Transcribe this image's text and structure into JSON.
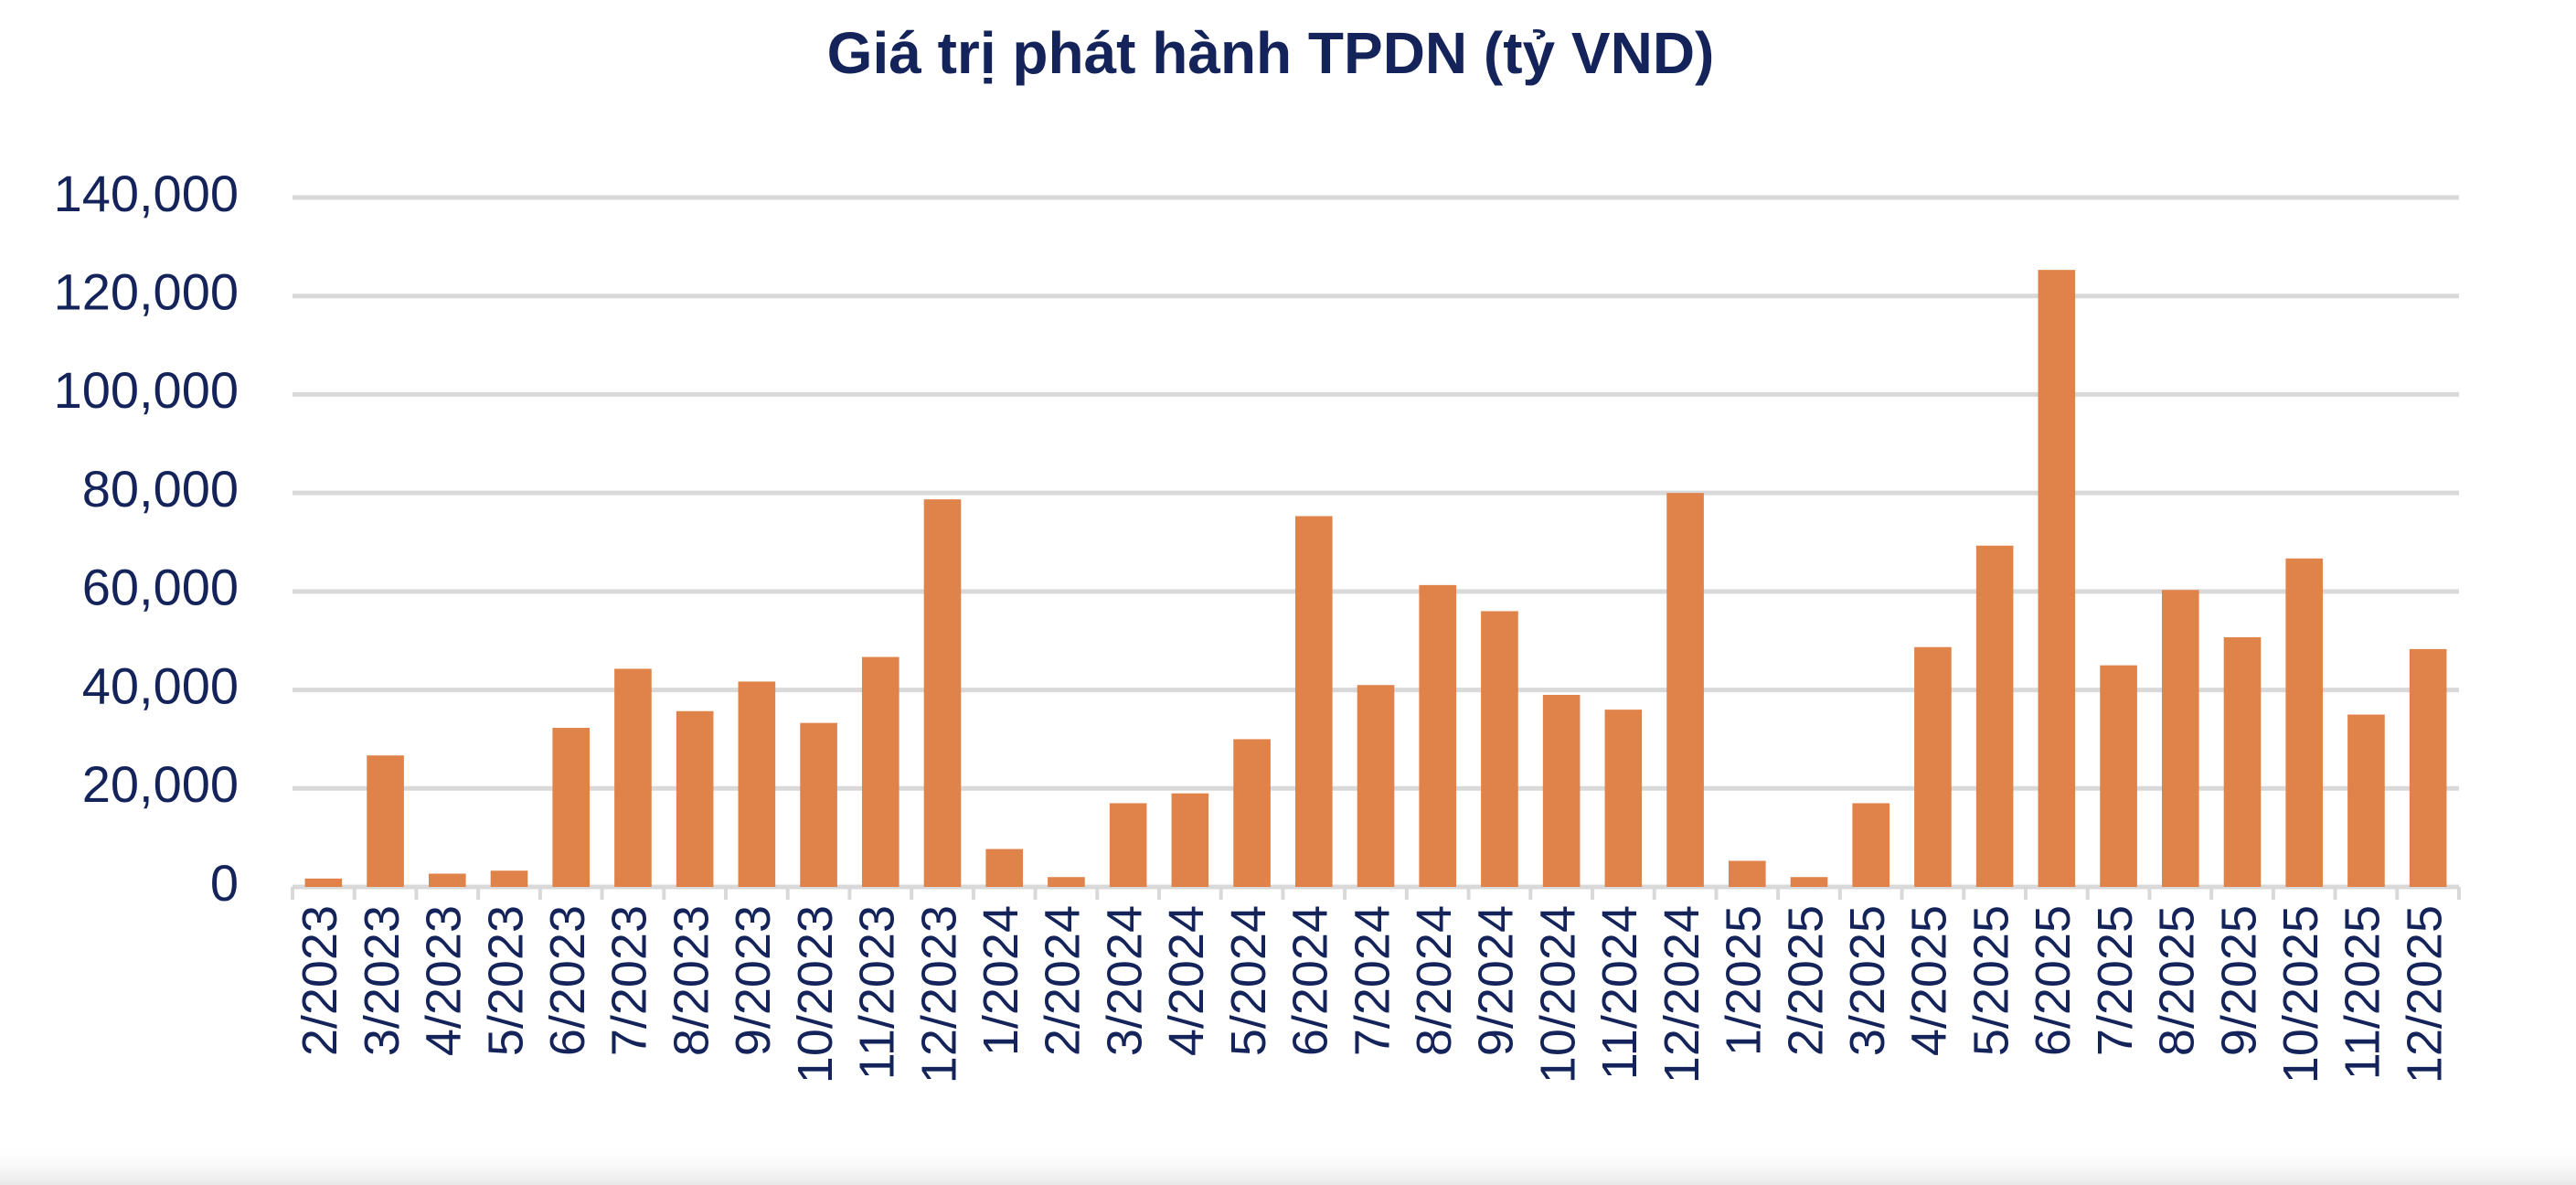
{
  "chart_data": {
    "type": "bar",
    "title": "Giá trị phát hành TPDN (tỷ VND)",
    "categories": [
      "2/2023",
      "3/2023",
      "4/2023",
      "5/2023",
      "6/2023",
      "7/2023",
      "8/2023",
      "9/2023",
      "10/2023",
      "11/2023",
      "12/2023",
      "1/2024",
      "2/2024",
      "3/2024",
      "4/2024",
      "5/2024",
      "6/2024",
      "7/2024",
      "8/2024",
      "9/2024",
      "10/2024",
      "11/2024",
      "12/2024",
      "1/2025",
      "2/2025",
      "3/2025",
      "4/2025",
      "5/2025",
      "6/2025",
      "7/2025",
      "8/2025",
      "9/2025",
      "10/2025",
      "11/2025",
      "12/2025"
    ],
    "values": [
      1700,
      26700,
      2700,
      3300,
      32300,
      44300,
      35700,
      41700,
      33300,
      46700,
      78700,
      7700,
      2000,
      17000,
      19000,
      30000,
      75300,
      41000,
      61300,
      56000,
      39000,
      36000,
      80000,
      5300,
      2000,
      17000,
      48700,
      69300,
      125300,
      45000,
      60300,
      50700,
      66700,
      35000,
      48300
    ],
    "color": "#e0834a",
    "ylim": [
      0,
      140000
    ],
    "yticks": [
      0,
      {
        "value": 20000,
        "label": "20,000"
      },
      {
        "value": 40000,
        "label": "40,000"
      },
      {
        "value": 60000,
        "label": "60,000"
      },
      {
        "value": 80000,
        "label": "80,000"
      },
      {
        "value": 100000,
        "label": "100,000"
      },
      {
        "value": 120000,
        "label": "120,000"
      },
      {
        "value": 140000,
        "label": "140,000"
      }
    ],
    "grid": true
  }
}
